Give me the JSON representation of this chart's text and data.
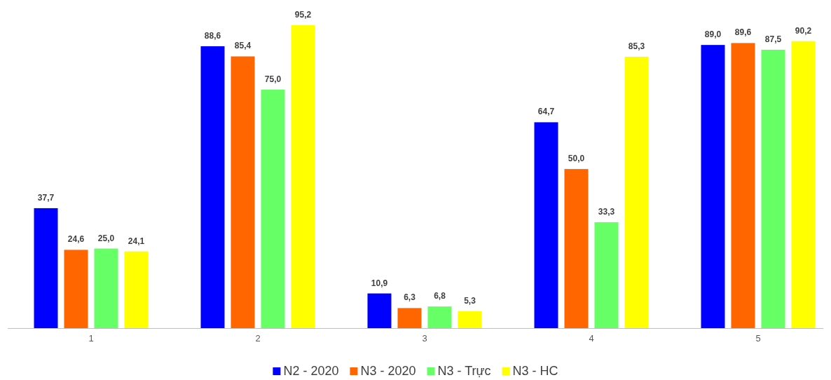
{
  "chart_data": {
    "type": "bar",
    "categories": [
      "1",
      "2",
      "3",
      "4",
      "5"
    ],
    "series": [
      {
        "name": "N2 - 2020",
        "color": "#0000ff",
        "values": [
          37.7,
          88.6,
          10.9,
          64.7,
          89.0
        ],
        "value_labels": [
          "37,7",
          "88,6",
          "10,9",
          "64,7",
          "89,0"
        ]
      },
      {
        "name": "N3 - 2020",
        "color": "#ff6600",
        "values": [
          24.6,
          85.4,
          6.3,
          50.0,
          89.6
        ],
        "value_labels": [
          "24,6",
          "85,4",
          "6,3",
          "50,0",
          "89,6"
        ]
      },
      {
        "name": "N3 - Trực",
        "color": "#66ff66",
        "values": [
          25.0,
          75.0,
          6.8,
          33.3,
          87.5
        ],
        "value_labels": [
          "25,0",
          "75,0",
          "6,8",
          "33,3",
          "87,5"
        ]
      },
      {
        "name": "N3 - HC",
        "color": "#ffff00",
        "values": [
          24.1,
          95.2,
          5.3,
          85.3,
          90.2
        ],
        "value_labels": [
          "24,1",
          "95,2",
          "5,3",
          "85,3",
          "90,2"
        ]
      }
    ],
    "legend": "bottom",
    "grid": false
  }
}
